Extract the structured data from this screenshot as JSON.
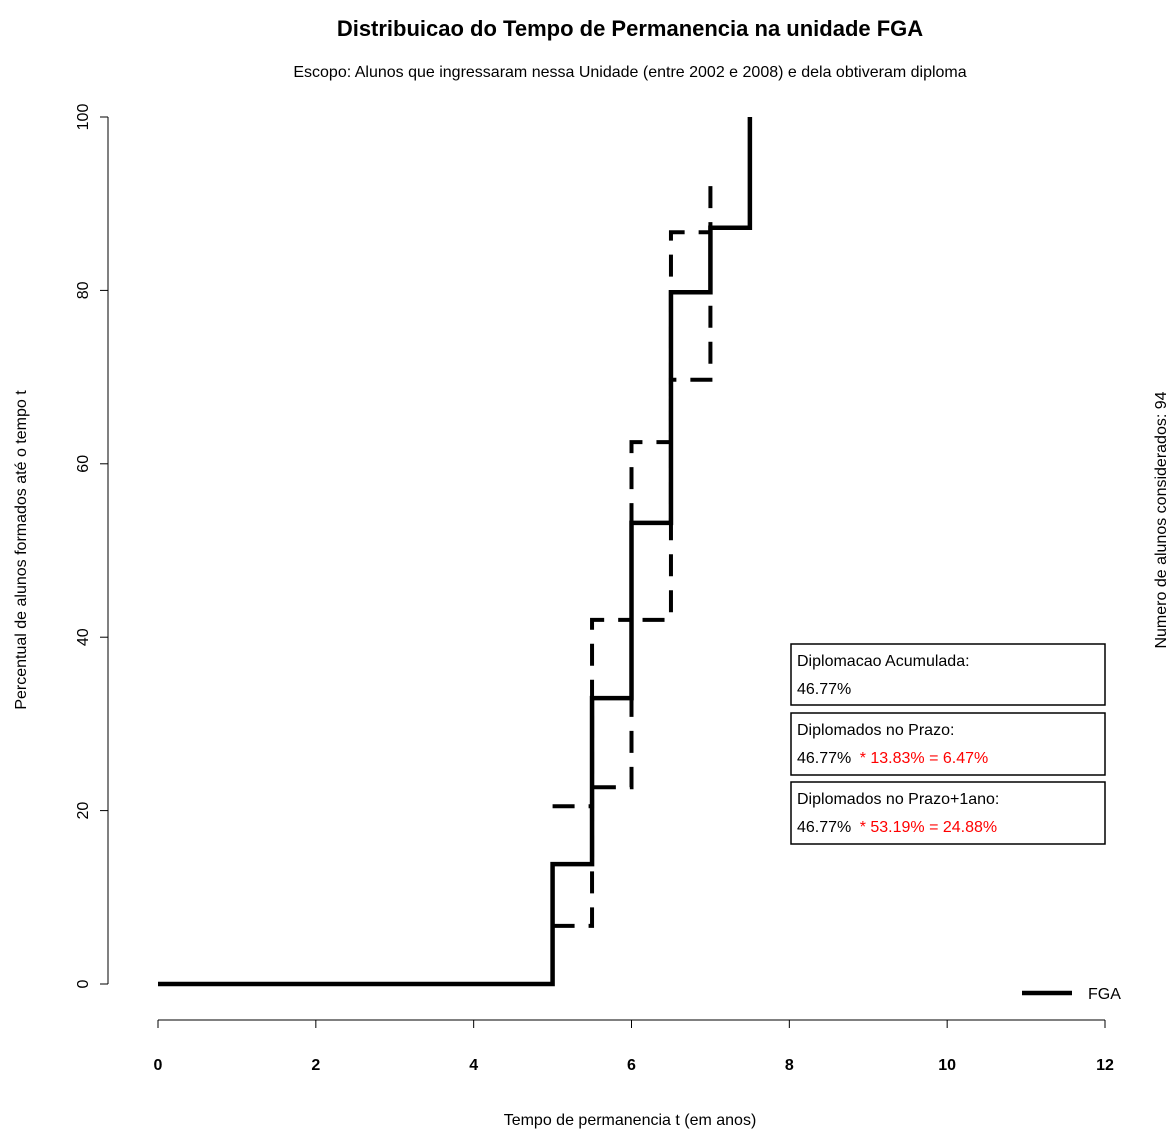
{
  "chart_data": {
    "type": "step",
    "title": "Distribuicao do Tempo de Permanencia na unidade FGA",
    "subtitle": "Escopo: Alunos que ingressaram nessa Unidade (entre 2002 e 2008) e dela obtiveram diploma",
    "x_label": "Tempo de permanencia t (em anos)",
    "y_label": "Percentual de alunos formados até o tempo t",
    "y2_label": "Numero de alunos considerados: 94",
    "xlim": [
      0,
      12
    ],
    "xticks": [
      0,
      2,
      4,
      6,
      8,
      10,
      12
    ],
    "ylim": [
      0,
      100
    ],
    "yticks": [
      0,
      20,
      40,
      60,
      80,
      100
    ],
    "legend_position": "bottom-right",
    "series": [
      {
        "name": "FGA",
        "color": "#000000",
        "style": "solid",
        "x": [
          0,
          5,
          5.5,
          6,
          6.5,
          7,
          7.5
        ],
        "values": [
          0,
          13.83,
          32.98,
          53.19,
          79.79,
          87.23,
          100
        ]
      },
      {
        "color": "#000000",
        "style": "dashed",
        "x": [
          5,
          5.5,
          6,
          6.5,
          7
        ],
        "values": [
          20.5,
          42,
          62.5,
          86.7,
          92.7
        ]
      },
      {
        "color": "#000000",
        "style": "dashed",
        "x": [
          5,
          5.5,
          6,
          6.5,
          7
        ],
        "values": [
          6.7,
          22.7,
          42,
          69.7,
          80
        ]
      }
    ],
    "annotations": [
      {
        "title": "Diplomacao Acumulada:",
        "text": "46.77%"
      },
      {
        "title": "Diplomados no Prazo:",
        "text": "46.77%",
        "highlight": " * 13.83% = 6.47%"
      },
      {
        "title": "Diplomados no Prazo+1ano:",
        "text": "46.77%",
        "highlight": " * 53.19% = 24.88%"
      }
    ]
  }
}
